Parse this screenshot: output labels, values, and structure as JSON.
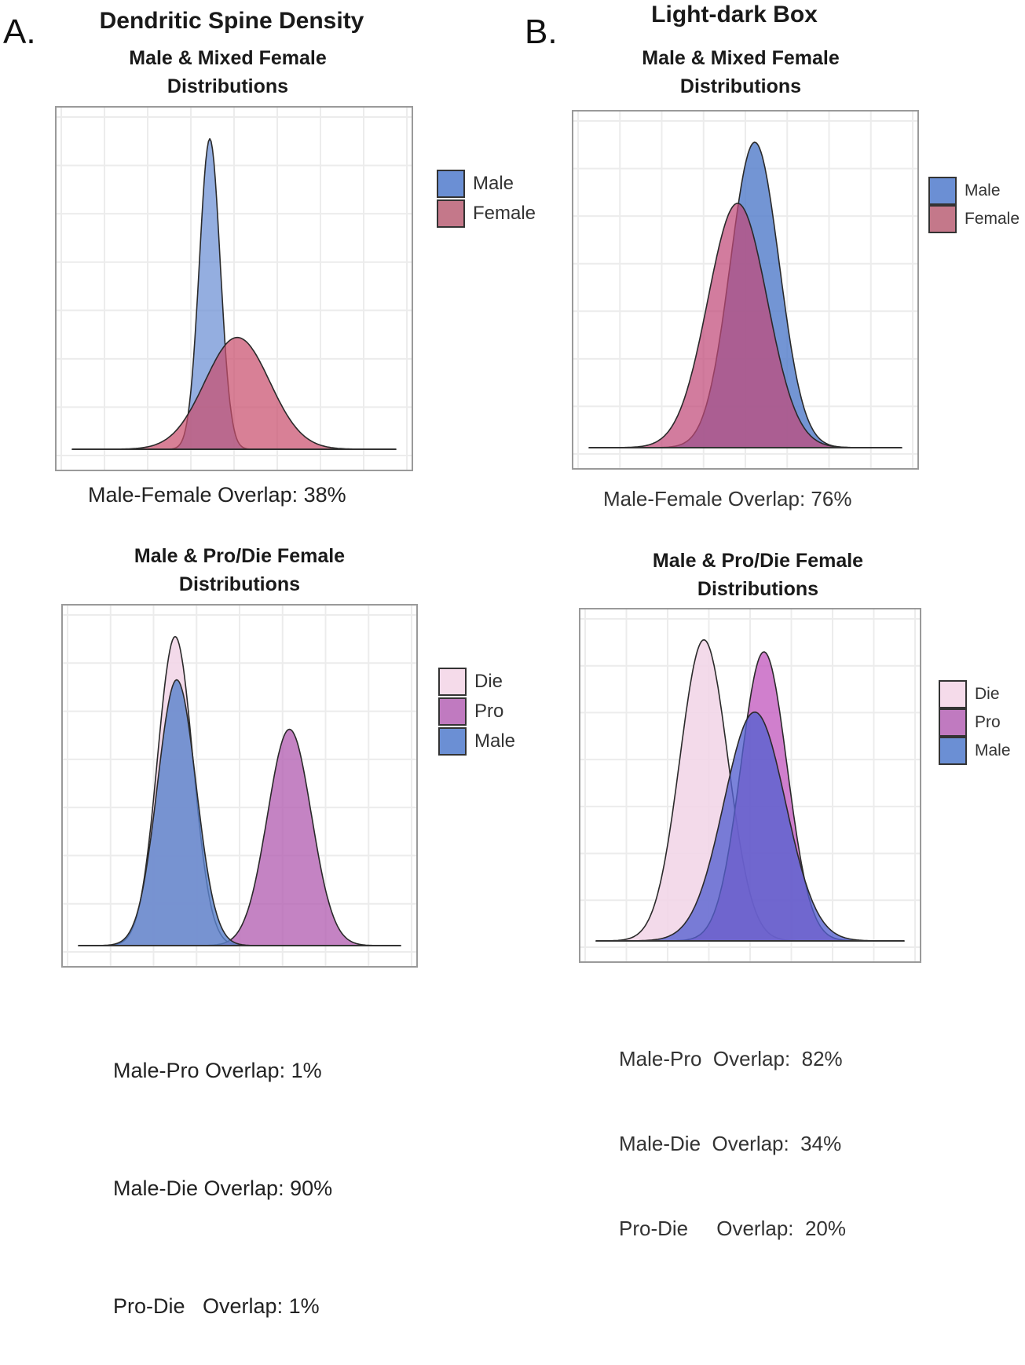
{
  "panels": [
    {
      "letter": "A.",
      "title": "Dendritic Spine Density"
    },
    {
      "letter": "B.",
      "title": "Light-dark Box"
    }
  ],
  "chart_data": [
    {
      "id": "A-mixed",
      "type": "area",
      "panel": "A",
      "title_line1": "Male & Mixed Female",
      "title_line2": "Distributions",
      "xlabel": "",
      "ylabel": "",
      "grid": true,
      "legend_position": "right",
      "x_range": [
        0,
        10
      ],
      "y_range": [
        0,
        1.08
      ],
      "series": [
        {
          "name": "Male",
          "color": "#6b8fd4",
          "opacity": 0.72,
          "mean": 4.25,
          "sd": 0.32,
          "peak": 1.0
        },
        {
          "name": "Female",
          "color": "#c94f6d",
          "opacity": 0.72,
          "mean": 5.1,
          "sd": 1.0,
          "peak": 0.36
        }
      ],
      "legend": [
        {
          "label": "Male",
          "color": "#6b8fd4"
        },
        {
          "label": "Female",
          "color": "#c4788a"
        }
      ],
      "annotations": [
        "Male-Female Overlap: 38%"
      ]
    },
    {
      "id": "B-mixed",
      "type": "area",
      "panel": "B",
      "title_line1": "Male & Mixed Female",
      "title_line2": "Distributions",
      "xlabel": "",
      "ylabel": "",
      "grid": true,
      "legend_position": "right",
      "x_range": [
        0,
        10
      ],
      "y_range": [
        0,
        1.08
      ],
      "series": [
        {
          "name": "Male",
          "color": "#5b82cc",
          "opacity": 0.85,
          "mean": 5.3,
          "sd": 0.78,
          "peak": 1.0
        },
        {
          "name": "Female",
          "color": "#c04a78",
          "opacity": 0.72,
          "mean": 4.75,
          "sd": 0.95,
          "peak": 0.8
        }
      ],
      "legend": [
        {
          "label": "Male",
          "color": "#6b8fd4"
        },
        {
          "label": "Female",
          "color": "#c4788a"
        }
      ],
      "annotations": [
        "Male-Female Overlap: 76%"
      ]
    },
    {
      "id": "A-prodie",
      "type": "area",
      "panel": "A",
      "title_line1": "Male & Pro/Die Female",
      "title_line2": "Distributions",
      "xlabel": "",
      "ylabel": "",
      "grid": true,
      "legend_position": "right",
      "x_range": [
        0,
        10
      ],
      "y_range": [
        0,
        1.08
      ],
      "series": [
        {
          "name": "Die",
          "color": "#f2d6e8",
          "opacity": 0.9,
          "mean": 3.0,
          "sd": 0.55,
          "peak": 1.0
        },
        {
          "name": "Pro",
          "color": "#b564b4",
          "opacity": 0.8,
          "mean": 6.55,
          "sd": 0.68,
          "peak": 0.7
        },
        {
          "name": "Male",
          "color": "#5b82cc",
          "opacity": 0.82,
          "mean": 3.05,
          "sd": 0.6,
          "peak": 0.86
        }
      ],
      "legend": [
        {
          "label": "Die",
          "color": "#f5dbea"
        },
        {
          "label": "Pro",
          "color": "#c07ac0"
        },
        {
          "label": "Male",
          "color": "#6b8fd4"
        }
      ],
      "annotations": [
        "Male-Pro Overlap: 1%",
        "Male-Die Overlap: 90%",
        "Pro-Die   Overlap: 1%"
      ]
    },
    {
      "id": "B-prodie",
      "type": "area",
      "panel": "B",
      "title_line1": "Male & Pro/Die Female",
      "title_line2": "Distributions",
      "xlabel": "",
      "ylabel": "",
      "grid": true,
      "legend_position": "right",
      "x_range": [
        0,
        10
      ],
      "y_range": [
        0,
        1.08
      ],
      "series": [
        {
          "name": "Die",
          "color": "#f2d6e8",
          "opacity": 0.9,
          "mean": 3.5,
          "sd": 0.78,
          "peak": 1.0
        },
        {
          "name": "Pro",
          "color": "#c45fc0",
          "opacity": 0.8,
          "mean": 5.45,
          "sd": 0.75,
          "peak": 0.96
        },
        {
          "name": "Male",
          "color": "#5560d0",
          "opacity": 0.78,
          "mean": 5.15,
          "sd": 1.0,
          "peak": 0.76
        }
      ],
      "legend": [
        {
          "label": "Die",
          "color": "#f5dbea"
        },
        {
          "label": "Pro",
          "color": "#c07ac0"
        },
        {
          "label": "Male",
          "color": "#6b8fd4"
        }
      ],
      "annotations": [
        "Male-Pro  Overlap:  82%",
        "Male-Die  Overlap:  34%",
        "Pro-Die     Overlap:  20%"
      ]
    }
  ]
}
